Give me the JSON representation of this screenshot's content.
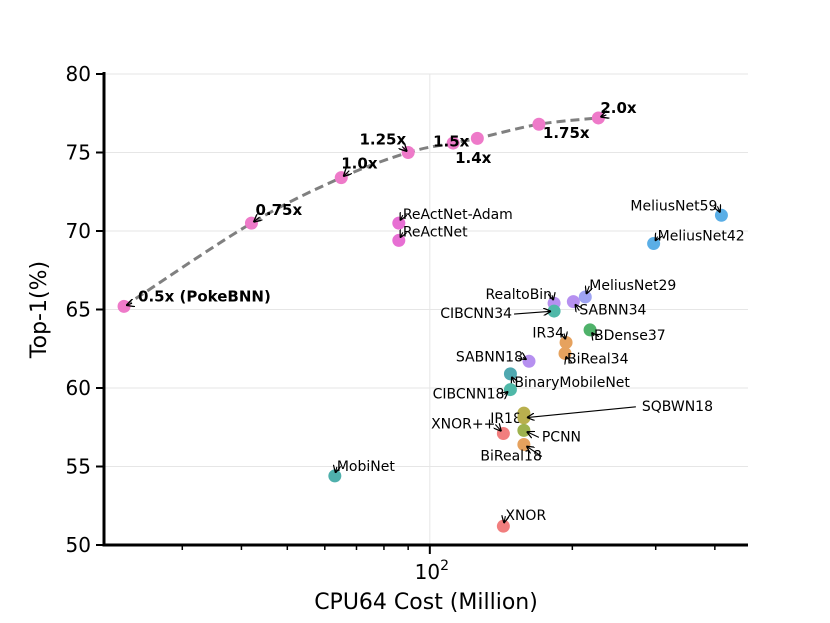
{
  "chart_data": {
    "type": "scatter",
    "xlabel": "CPU64 Cost (Million)",
    "ylabel": "Top-1(%)",
    "x_scale": "log",
    "xlim": [
      20.5,
      470
    ],
    "ylim": [
      50,
      80
    ],
    "y_ticks": [
      "50",
      "55",
      "60",
      "65",
      "70",
      "75",
      "80"
    ],
    "x_ticks": [
      {
        "value": 100,
        "label": "10",
        "exponent": "2"
      }
    ],
    "grid": "major only (x = 100, y = 55…80)",
    "frontier_color": "#808080",
    "frontier": [
      {
        "label": "0.5x (PokeBNN)",
        "x": 22.6,
        "y": 65.2
      },
      {
        "label": "0.75x",
        "x": 42,
        "y": 70.5
      },
      {
        "label": "1.0x",
        "x": 65,
        "y": 73.4
      },
      {
        "label": "1.25x",
        "x": 90,
        "y": 75.0
      },
      {
        "label": "1.4x",
        "x": 112,
        "y": 75.6
      },
      {
        "label": "1.5x",
        "x": 126,
        "y": 75.9
      },
      {
        "label": "1.75x",
        "x": 170,
        "y": 76.8
      },
      {
        "label": "2.0x",
        "x": 227,
        "y": 77.2
      }
    ],
    "points": [
      {
        "label": "ReActNet-Adam",
        "x": 86,
        "y": 70.5,
        "color": "#e76fd3"
      },
      {
        "label": "ReActNet",
        "x": 86,
        "y": 69.4,
        "color": "#e76fd3"
      },
      {
        "label": "MeliusNet59",
        "x": 413,
        "y": 71.0,
        "color": "#5aaee6"
      },
      {
        "label": "MeliusNet42",
        "x": 297,
        "y": 69.2,
        "color": "#5aaee6"
      },
      {
        "label": "MeliusNet29",
        "x": 213,
        "y": 65.8,
        "color": "#9ea3f2"
      },
      {
        "label": "RealtoBin",
        "x": 183,
        "y": 65.4,
        "color": "#b690f0"
      },
      {
        "label": "SABNN34",
        "x": 201,
        "y": 65.5,
        "color": "#b690f0"
      },
      {
        "label": "CIBCNN34",
        "x": 183,
        "y": 64.9,
        "color": "#4fb8a8"
      },
      {
        "label": "BDense37",
        "x": 218,
        "y": 63.7,
        "color": "#4fb26a"
      },
      {
        "label": "IR34",
        "x": 194,
        "y": 62.9,
        "color": "#e6a25e"
      },
      {
        "label": "BiReal34",
        "x": 193,
        "y": 62.2,
        "color": "#e6a25e"
      },
      {
        "label": "SABNN18",
        "x": 162,
        "y": 61.7,
        "color": "#b690f0"
      },
      {
        "label": "BinaryMobileNet",
        "x": 148,
        "y": 60.9,
        "color": "#4fa8b0"
      },
      {
        "label": "CIBCNN18",
        "x": 148,
        "y": 59.9,
        "color": "#4fb8a8"
      },
      {
        "label": "IR18",
        "x": 158,
        "y": 58.4,
        "color": "#b9b04e"
      },
      {
        "label": "SQBWN18",
        "x": 158,
        "y": 58.1,
        "color": "#b9b04e"
      },
      {
        "label": "XNOR++",
        "x": 143,
        "y": 57.1,
        "color": "#f17e7e"
      },
      {
        "label": "PCNN",
        "x": 158,
        "y": 57.3,
        "color": "#9eb24e"
      },
      {
        "label": "BiReal18",
        "x": 158,
        "y": 56.4,
        "color": "#e6a25e"
      },
      {
        "label": "MobiNet",
        "x": 63,
        "y": 54.4,
        "color": "#4fb0ac"
      },
      {
        "label": "XNOR",
        "x": 143,
        "y": 51.2,
        "color": "#f17e7e"
      }
    ]
  }
}
